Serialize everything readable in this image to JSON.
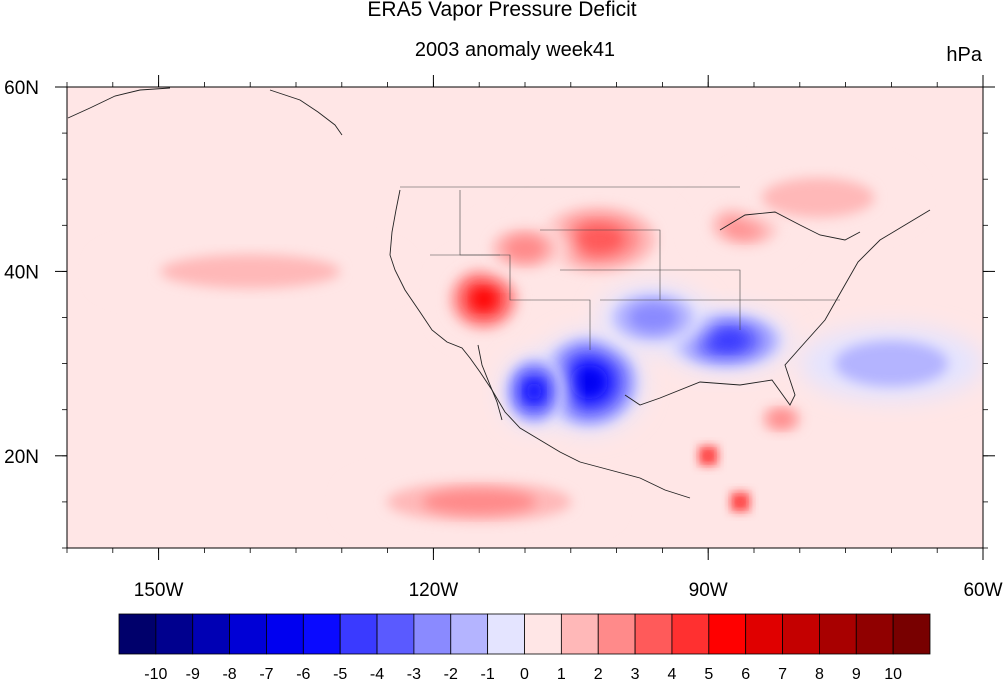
{
  "title": "ERA5 Vapor Pressure Deficit",
  "subtitle": "2003 anomaly week41",
  "units": "hPa",
  "chart_data": {
    "type": "heatmap",
    "title": "ERA5 Vapor Pressure Deficit",
    "subtitle": "2003 anomaly week41",
    "units": "hPa",
    "x_axis": {
      "range": [
        -160,
        -60
      ],
      "ticks": [
        -150,
        -120,
        -90,
        -60
      ],
      "tick_labels": [
        "150W",
        "120W",
        "90W",
        "60W"
      ]
    },
    "y_axis": {
      "range": [
        10,
        60
      ],
      "ticks": [
        20,
        40,
        60
      ],
      "tick_labels": [
        "20N",
        "40N",
        "60N"
      ]
    },
    "colorbar": {
      "levels": [
        -10,
        -9,
        -8,
        -7,
        -6,
        -5,
        -4,
        -3,
        -2,
        -1,
        0,
        1,
        2,
        3,
        4,
        5,
        6,
        7,
        8,
        9,
        10
      ],
      "labels": [
        "-10",
        "-9",
        "-8",
        "-7",
        "-6",
        "-5",
        "-4",
        "-3",
        "-2",
        "-1",
        "0",
        "1",
        "2",
        "3",
        "4",
        "5",
        "6",
        "7",
        "8",
        "9",
        "10"
      ],
      "colors": [
        "#00006b",
        "#00008e",
        "#0000b4",
        "#0000d6",
        "#0000f0",
        "#0a0aff",
        "#3a3aff",
        "#5a5aff",
        "#8a8aff",
        "#b4b4ff",
        "#e4e4ff",
        "#ffe6e6",
        "#ffb8b8",
        "#ff8a8a",
        "#ff5a5a",
        "#ff3030",
        "#ff0000",
        "#e00000",
        "#c40000",
        "#a80000",
        "#900000",
        "#780000"
      ]
    },
    "anomaly_regions": [
      {
        "lon": -114.5,
        "lat": 37,
        "rlon": 4.5,
        "rlat": 4,
        "value": 6
      },
      {
        "lon": -102,
        "lat": 43.5,
        "rlon": 8,
        "rlat": 4.5,
        "value": 4
      },
      {
        "lon": -110,
        "lat": 42.5,
        "rlon": 5,
        "rlat": 3,
        "value": 3
      },
      {
        "lon": -86,
        "lat": 45,
        "rlon": 5,
        "rlat": 3,
        "value": 3
      },
      {
        "lon": -140,
        "lat": 40,
        "rlon": 16,
        "rlat": 3,
        "value": 2
      },
      {
        "lon": -78,
        "lat": 48,
        "rlon": 10,
        "rlat": 3.5,
        "value": 2
      },
      {
        "lon": -103,
        "lat": 28,
        "rlon": 6,
        "rlat": 5.5,
        "value": -7
      },
      {
        "lon": -109,
        "lat": 27,
        "rlon": 3.5,
        "rlat": 4,
        "value": -6
      },
      {
        "lon": -88,
        "lat": 32.5,
        "rlon": 7,
        "rlat": 3.5,
        "value": -5
      },
      {
        "lon": -96,
        "lat": 35,
        "rlon": 6,
        "rlat": 3.5,
        "value": -3
      },
      {
        "lon": -70,
        "lat": 30,
        "rlon": 10,
        "rlat": 4,
        "value": -2
      },
      {
        "lon": -115,
        "lat": 15,
        "rlon": 14,
        "rlat": 3,
        "value": 3
      },
      {
        "lon": -90,
        "lat": 20,
        "rlon": 1.5,
        "rlat": 1.5,
        "value": 6
      },
      {
        "lon": -86.5,
        "lat": 15,
        "rlon": 1.5,
        "rlat": 1.5,
        "value": 6
      },
      {
        "lon": -82,
        "lat": 24,
        "rlon": 3,
        "rlat": 2,
        "value": 3
      }
    ]
  }
}
